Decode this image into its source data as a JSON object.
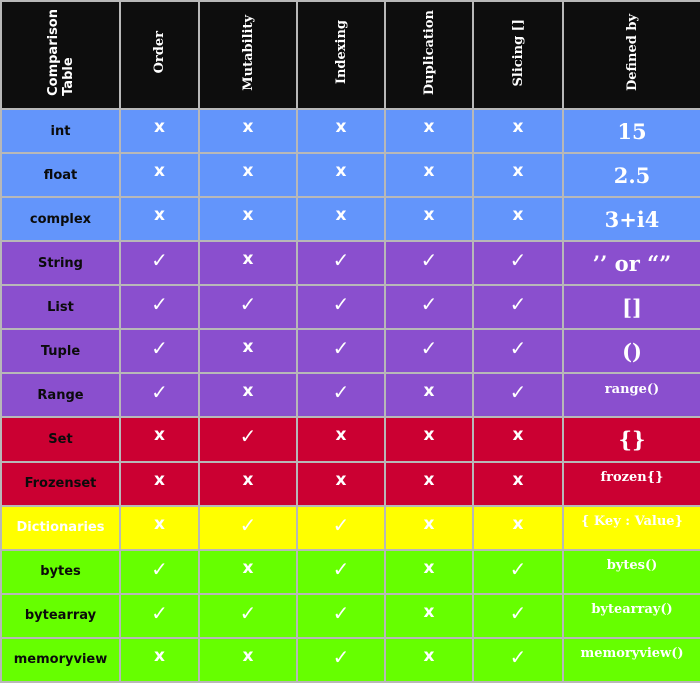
{
  "table": {
    "corner_label": "Comparison\nTable",
    "columns": [
      "Order",
      "Mutability",
      "Indexing",
      "Duplication",
      "Slicing []",
      "Defined by"
    ],
    "symbols": {
      "yes": "✓",
      "no": "x"
    },
    "group_colors": {
      "numeric": "#6395fb",
      "sequence": "#8a4fce",
      "set": "#cb0032",
      "mapping": "#ffff00",
      "binary": "#66ff00",
      "header": "#0d0d0d",
      "grid": "#b8b8b8"
    },
    "rows": [
      {
        "name": "int",
        "group": "numeric",
        "order": "x",
        "mutability": "x",
        "indexing": "x",
        "duplication": "x",
        "slicing": "x",
        "defined_by": "15"
      },
      {
        "name": "float",
        "group": "numeric",
        "order": "x",
        "mutability": "x",
        "indexing": "x",
        "duplication": "x",
        "slicing": "x",
        "defined_by": "2.5"
      },
      {
        "name": "complex",
        "group": "numeric",
        "order": "x",
        "mutability": "x",
        "indexing": "x",
        "duplication": "x",
        "slicing": "x",
        "defined_by": "3+i4"
      },
      {
        "name": "String",
        "group": "sequence",
        "order": "✓",
        "mutability": "x",
        "indexing": "✓",
        "duplication": "✓",
        "slicing": "✓",
        "defined_by": "’’ or “”"
      },
      {
        "name": "List",
        "group": "sequence",
        "order": "✓",
        "mutability": "✓",
        "indexing": "✓",
        "duplication": "✓",
        "slicing": "✓",
        "defined_by": "[]"
      },
      {
        "name": "Tuple",
        "group": "sequence",
        "order": "✓",
        "mutability": "x",
        "indexing": "✓",
        "duplication": "✓",
        "slicing": "✓",
        "defined_by": "()"
      },
      {
        "name": "Range",
        "group": "sequence",
        "order": "✓",
        "mutability": "x",
        "indexing": "✓",
        "duplication": "x",
        "slicing": "✓",
        "defined_by": "range()"
      },
      {
        "name": "Set",
        "group": "set",
        "order": "x",
        "mutability": "✓",
        "indexing": "x",
        "duplication": "x",
        "slicing": "x",
        "defined_by": "{}"
      },
      {
        "name": "Frozenset",
        "group": "set",
        "order": "x",
        "mutability": "x",
        "indexing": "x",
        "duplication": "x",
        "slicing": "x",
        "defined_by": "frozen{}"
      },
      {
        "name": "Dictionaries",
        "group": "mapping",
        "order": "x",
        "mutability": "✓",
        "indexing": "✓",
        "duplication": "x",
        "slicing": "x",
        "defined_by": "{ Key : Value}"
      },
      {
        "name": "bytes",
        "group": "binary",
        "order": "✓",
        "mutability": "x",
        "indexing": "✓",
        "duplication": "x",
        "slicing": "✓",
        "defined_by": "bytes()"
      },
      {
        "name": "bytearray",
        "group": "binary",
        "order": "✓",
        "mutability": "✓",
        "indexing": "✓",
        "duplication": "x",
        "slicing": "✓",
        "defined_by": "bytearray()"
      },
      {
        "name": "memoryview",
        "group": "binary",
        "order": "x",
        "mutability": "x",
        "indexing": "✓",
        "duplication": "x",
        "slicing": "✓",
        "defined_by": "memoryview()"
      }
    ]
  }
}
